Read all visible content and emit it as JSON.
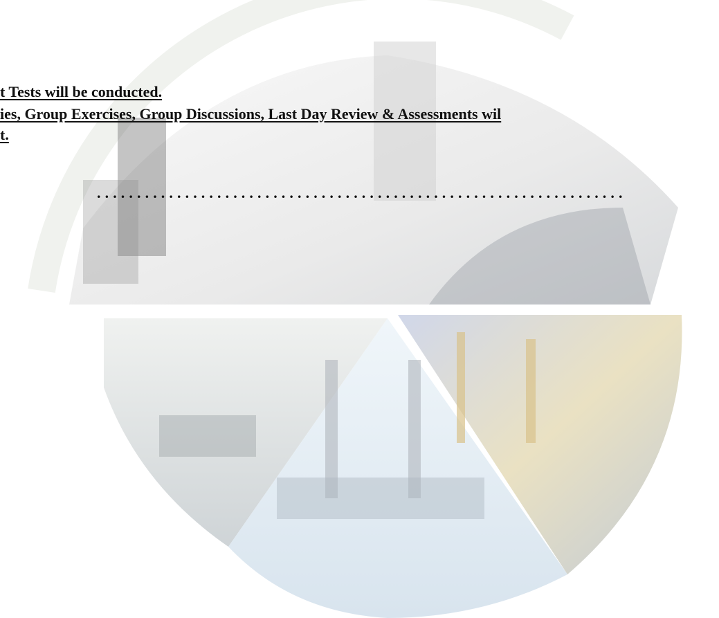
{
  "document": {
    "lines": [
      "t Tests will be conducted.",
      "ies, Group Exercises, Group Discussions, Last Day Review & Assessments wil",
      "t."
    ],
    "separator": ".................................................................."
  }
}
